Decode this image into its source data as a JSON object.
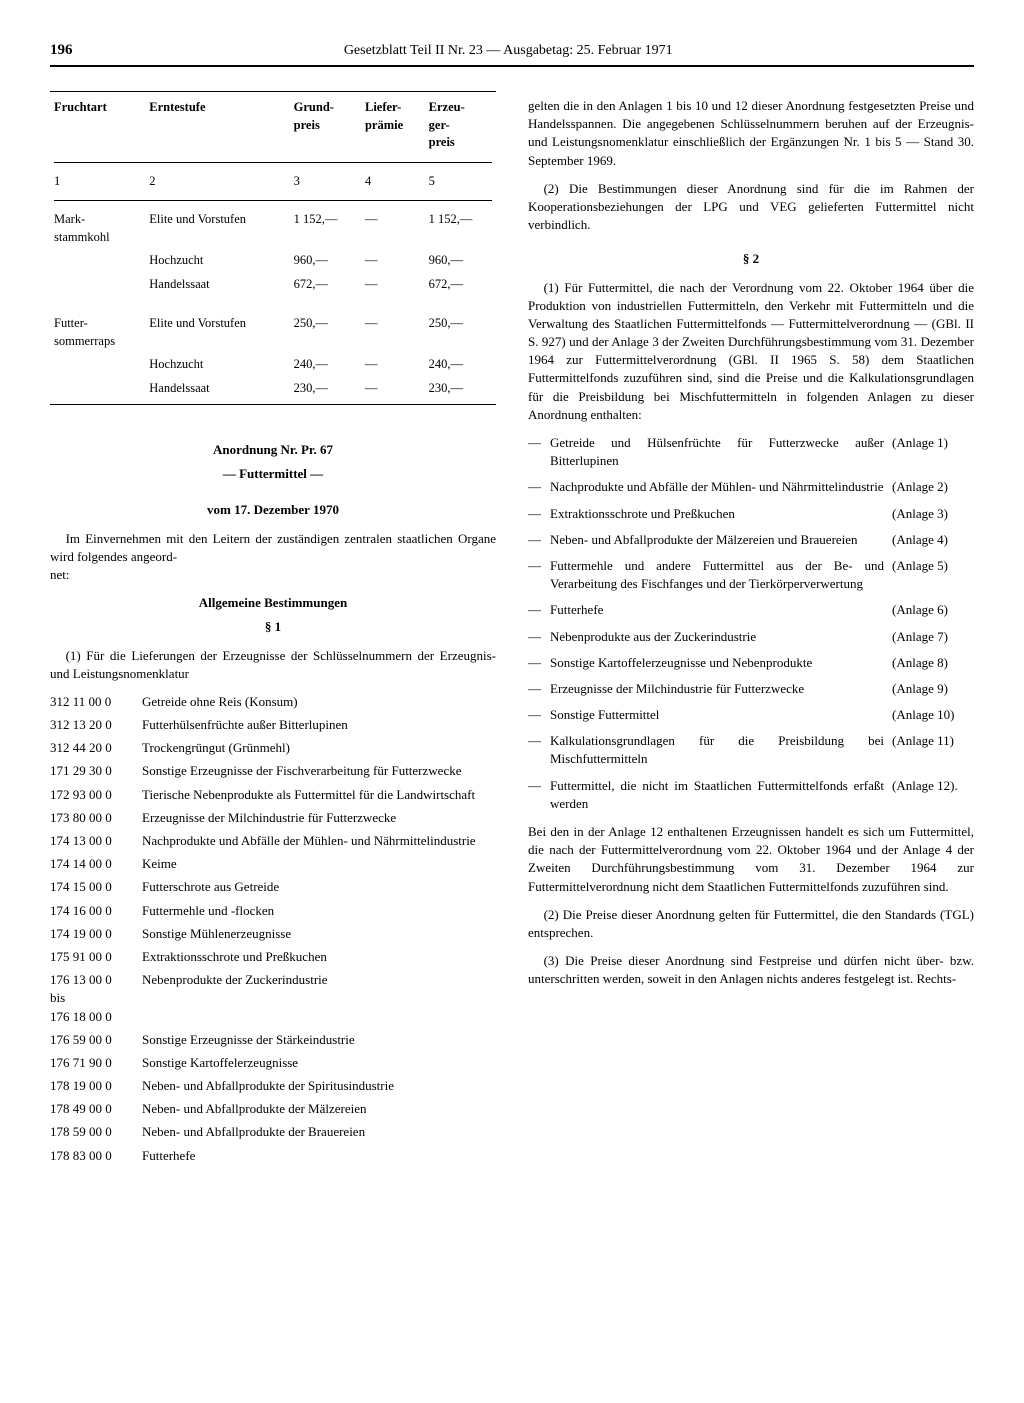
{
  "header": {
    "page_number": "196",
    "title": "Gesetzblatt Teil II Nr. 23 — Ausgabetag: 25. Februar 1971"
  },
  "price_table": {
    "headers": [
      "Fruchtart",
      "Erntestufe",
      "Grund-\npreis",
      "Liefer-\nprämie",
      "Erzeu-\nger-\npreis"
    ],
    "col_nums": [
      "1",
      "2",
      "3",
      "4",
      "5"
    ],
    "groups": [
      {
        "fruchtart": "Mark-\nstammkohl",
        "rows": [
          {
            "stufe": "Elite und Vorstufen",
            "grund": "1 152,—",
            "liefer": "—",
            "erzeuger": "1 152,—"
          },
          {
            "stufe": "Hochzucht",
            "grund": "960,—",
            "liefer": "—",
            "erzeuger": "960,—"
          },
          {
            "stufe": "Handelssaat",
            "grund": "672,—",
            "liefer": "—",
            "erzeuger": "672,—"
          }
        ]
      },
      {
        "fruchtart": "Futter-\nsommerraps",
        "rows": [
          {
            "stufe": "Elite und Vorstufen",
            "grund": "250,—",
            "liefer": "—",
            "erzeuger": "250,—"
          },
          {
            "stufe": "Hochzucht",
            "grund": "240,—",
            "liefer": "—",
            "erzeuger": "240,—"
          },
          {
            "stufe": "Handelssaat",
            "grund": "230,—",
            "liefer": "—",
            "erzeuger": "230,—"
          }
        ]
      }
    ]
  },
  "ordinance": {
    "title1": "Anordnung Nr. Pr. 67",
    "title2": "— Futtermittel —",
    "title3": "vom 17. Dezember 1970",
    "intro": "Im Einvernehmen mit den Leitern der zuständigen zentralen staatlichen Organe wird folgendes angeord-\nnet:",
    "heading_allg": "Allgemeine Bestimmungen",
    "s1": "§ 1",
    "s1_p1": "(1) Für die Lieferungen der Erzeugnisse der Schlüsselnummern der Erzeugnis- und Leistungsnomenklatur"
  },
  "codes": [
    {
      "k": "312 11 00 0",
      "d": "Getreide ohne Reis (Konsum)"
    },
    {
      "k": "312 13 20 0",
      "d": "Futterhülsenfrüchte außer Bitterlupinen"
    },
    {
      "k": "312 44 20 0",
      "d": "Trockengrüngut (Grünmehl)"
    },
    {
      "k": "171 29 30 0",
      "d": "Sonstige Erzeugnisse der Fischverarbeitung für Futterzwecke"
    },
    {
      "k": "172 93 00 0",
      "d": "Tierische Nebenprodukte als Futtermittel für die Landwirtschaft"
    },
    {
      "k": "173 80 00 0",
      "d": "Erzeugnisse der Milchindustrie für Futterzwecke"
    },
    {
      "k": "174 13 00 0",
      "d": "Nachprodukte und Abfälle der Mühlen- und Nährmittelindustrie"
    },
    {
      "k": "174 14 00 0",
      "d": "Keime"
    },
    {
      "k": "174 15 00 0",
      "d": "Futterschrote aus Getreide"
    },
    {
      "k": "174 16 00 0",
      "d": "Futtermehle und -flocken"
    },
    {
      "k": "174 19 00 0",
      "d": "Sonstige Mühlenerzeugnisse"
    },
    {
      "k": "175 91 00 0",
      "d": "Extraktionsschrote und Preßkuchen"
    },
    {
      "k": "176 13 00 0\nbis\n176 18 00 0",
      "d": "Nebenprodukte der Zuckerindustrie"
    },
    {
      "k": "176 59 00 0",
      "d": "Sonstige Erzeugnisse der Stärkeindustrie"
    },
    {
      "k": "176 71 90 0",
      "d": "Sonstige Kartoffelerzeugnisse"
    },
    {
      "k": "178 19 00 0",
      "d": "Neben- und Abfallprodukte der Spiritusindustrie"
    },
    {
      "k": "178 49 00 0",
      "d": "Neben- und Abfallprodukte der Mälzereien"
    },
    {
      "k": "178 59 00 0",
      "d": "Neben- und Abfallprodukte der Brauereien"
    },
    {
      "k": "178 83 00 0",
      "d": "Futterhefe"
    }
  ],
  "right": {
    "p1": "gelten die in den Anlagen 1 bis 10 und 12 dieser Anordnung festgesetzten Preise und Handelsspannen. Die angegebenen Schlüsselnummern beruhen auf der Erzeugnis- und Leistungsnomenklatur einschließlich der Ergänzungen Nr. 1 bis 5 — Stand 30. September 1969.",
    "p2": "(2) Die Bestimmungen dieser Anordnung sind für die im Rahmen der Kooperationsbeziehungen der LPG und VEG gelieferten Futtermittel nicht verbindlich.",
    "s2": "§ 2",
    "s2_p1": "(1) Für Futtermittel, die nach der Verordnung vom 22. Oktober 1964 über die Produktion von industriellen Futtermitteln, den Verkehr mit Futtermitteln und die Verwaltung des Staatlichen Futtermittelfonds — Futtermittelverordnung — (GBl. II S. 927) und der Anlage 3 der Zweiten Durchführungsbestimmung vom 31. Dezember 1964 zur Futtermittelverordnung (GBl. II 1965 S. 58) dem Staatlichen Futtermittelfonds zuzuführen sind, sind die Preise und die Kalkulationsgrundlagen für die Preisbildung bei Mischfuttermitteln in folgenden Anlagen zu dieser Anordnung enthalten:",
    "anlagen": [
      {
        "d": "Getreide und Hülsenfrüchte für Futterzwecke außer Bitterlupinen",
        "r": "(Anlage  1)"
      },
      {
        "d": "Nachprodukte und Abfälle der Mühlen- und Nährmittelindustrie",
        "r": "(Anlage  2)"
      },
      {
        "d": "Extraktionsschrote und Preßkuchen",
        "r": "(Anlage  3)"
      },
      {
        "d": "Neben- und Abfallprodukte der Mälzereien und Brauereien",
        "r": "(Anlage  4)"
      },
      {
        "d": "Futtermehle und andere Futtermittel aus der Be- und Verarbeitung des Fischfanges und der Tierkörperverwertung",
        "r": "(Anlage  5)"
      },
      {
        "d": "Futterhefe",
        "r": "(Anlage  6)"
      },
      {
        "d": "Nebenprodukte aus der Zuckerindustrie",
        "r": "(Anlage  7)"
      },
      {
        "d": "Sonstige Kartoffelerzeugnisse und Nebenprodukte",
        "r": "(Anlage  8)"
      },
      {
        "d": "Erzeugnisse der Milchindustrie für Futterzwecke",
        "r": "(Anlage  9)"
      },
      {
        "d": "Sonstige Futtermittel",
        "r": "(Anlage 10)"
      },
      {
        "d": "Kalkulationsgrundlagen für die Preisbildung bei Mischfuttermitteln",
        "r": "(Anlage 11)"
      },
      {
        "d": "Futtermittel, die nicht im Staatlichen Futtermittelfonds erfaßt werden",
        "r": "(Anlage 12)."
      }
    ],
    "after": "Bei den in der Anlage 12 enthaltenen Erzeugnissen handelt es sich um Futtermittel, die nach der Futtermittelverordnung vom 22. Oktober 1964 und der Anlage 4 der Zweiten Durchführungsbestimmung vom 31. Dezember 1964 zur Futtermittelverordnung nicht dem Staatlichen Futtermittelfonds zuzuführen sind.",
    "s2_p2": "(2) Die Preise dieser Anordnung gelten für Futtermittel, die den Standards (TGL) entsprechen.",
    "s2_p3": "(3) Die Preise dieser Anordnung sind Festpreise und dürfen nicht über- bzw. unterschritten werden, soweit in den Anlagen nichts anderes festgelegt ist. Rechts-"
  }
}
